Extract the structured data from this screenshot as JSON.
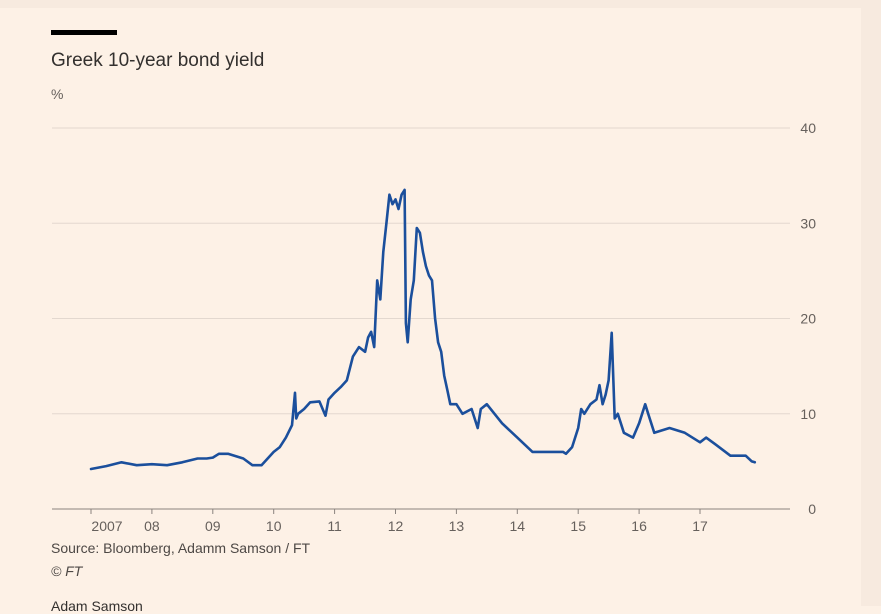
{
  "chart_data": {
    "type": "line",
    "title": "Greek 10-year bond yield",
    "unit_label": "%",
    "ylim": [
      0,
      40
    ],
    "y_ticks": [
      0,
      10,
      20,
      30,
      40
    ],
    "x_range": [
      2006.9,
      2018.0
    ],
    "x_ticks": [
      {
        "value": 2007.0,
        "label": "2007"
      },
      {
        "value": 2008.0,
        "label": "08"
      },
      {
        "value": 2009.0,
        "label": "09"
      },
      {
        "value": 2010.0,
        "label": "10"
      },
      {
        "value": 2011.0,
        "label": "11"
      },
      {
        "value": 2012.0,
        "label": "12"
      },
      {
        "value": 2013.0,
        "label": "13"
      },
      {
        "value": 2014.0,
        "label": "14"
      },
      {
        "value": 2015.0,
        "label": "15"
      },
      {
        "value": 2016.0,
        "label": "16"
      },
      {
        "value": 2017.0,
        "label": "17"
      }
    ],
    "grid": true,
    "series": [
      {
        "color": "#1b4f9c",
        "x": [
          2007.0,
          2007.25,
          2007.5,
          2007.75,
          2008.0,
          2008.25,
          2008.5,
          2008.75,
          2008.9,
          2009.0,
          2009.1,
          2009.25,
          2009.5,
          2009.65,
          2009.8,
          2010.0,
          2010.1,
          2010.2,
          2010.3,
          2010.35,
          2010.37,
          2010.4,
          2010.5,
          2010.6,
          2010.75,
          2010.85,
          2010.9,
          2011.0,
          2011.1,
          2011.2,
          2011.3,
          2011.4,
          2011.5,
          2011.55,
          2011.6,
          2011.65,
          2011.7,
          2011.75,
          2011.8,
          2011.85,
          2011.9,
          2011.95,
          2012.0,
          2012.05,
          2012.1,
          2012.15,
          2012.17,
          2012.2,
          2012.25,
          2012.3,
          2012.35,
          2012.4,
          2012.45,
          2012.5,
          2012.55,
          2012.6,
          2012.65,
          2012.7,
          2012.75,
          2012.8,
          2012.85,
          2012.9,
          2013.0,
          2013.1,
          2013.25,
          2013.35,
          2013.4,
          2013.5,
          2013.75,
          2014.0,
          2014.25,
          2014.5,
          2014.75,
          2014.8,
          2014.9,
          2015.0,
          2015.05,
          2015.1,
          2015.2,
          2015.3,
          2015.35,
          2015.4,
          2015.45,
          2015.5,
          2015.55,
          2015.6,
          2015.65,
          2015.75,
          2015.9,
          2016.0,
          2016.1,
          2016.15,
          2016.25,
          2016.5,
          2016.75,
          2017.0,
          2017.1,
          2017.25,
          2017.5,
          2017.75,
          2017.85,
          2017.9
        ],
        "y": [
          4.2,
          4.5,
          4.9,
          4.6,
          4.7,
          4.6,
          4.9,
          5.3,
          5.3,
          5.4,
          5.8,
          5.8,
          5.3,
          4.6,
          4.6,
          6.0,
          6.5,
          7.5,
          8.8,
          12.2,
          9.5,
          10.0,
          10.5,
          11.2,
          11.3,
          9.8,
          11.5,
          12.2,
          12.8,
          13.5,
          16.0,
          17.0,
          16.5,
          18.0,
          18.6,
          17.0,
          24.0,
          22.0,
          27.0,
          30.0,
          33.0,
          32.0,
          32.5,
          31.5,
          33.0,
          33.5,
          19.5,
          17.5,
          22.0,
          24.0,
          29.5,
          29.0,
          27.0,
          25.5,
          24.5,
          24.0,
          20.0,
          17.5,
          16.5,
          14.0,
          12.5,
          11.0,
          11.0,
          10.0,
          10.5,
          8.5,
          10.5,
          11.0,
          9.0,
          7.5,
          6.0,
          6.0,
          6.0,
          5.8,
          6.5,
          8.5,
          10.5,
          10.0,
          11.0,
          11.5,
          13.0,
          11.0,
          12.0,
          13.5,
          18.5,
          9.5,
          10.0,
          8.0,
          7.5,
          9.0,
          11.0,
          10.0,
          8.0,
          8.5,
          8.0,
          7.0,
          7.5,
          6.8,
          5.6,
          5.6,
          5.0,
          4.9
        ]
      }
    ]
  },
  "footer": {
    "source": "Source: Bloomberg, Adamm Samson / FT",
    "copyright": "© FT",
    "author": "Adam Samson"
  }
}
